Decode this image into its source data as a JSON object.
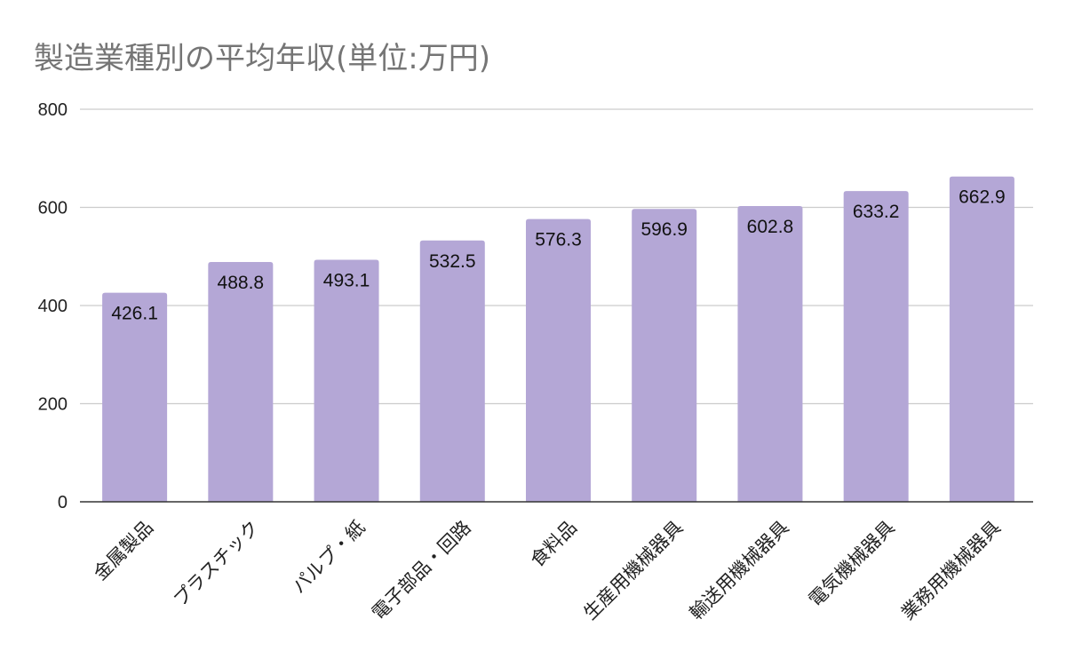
{
  "chart_data": {
    "type": "bar",
    "title": "製造業種別の平均年収(単位:万円)",
    "categories": [
      "金属製品",
      "プラスチック",
      "パルプ・紙",
      "電子部品・回路",
      "食料品",
      "生産用機械器具",
      "輸送用機械器具",
      "電気機械器具",
      "業務用機械器具"
    ],
    "values": [
      426.1,
      488.8,
      493.1,
      532.5,
      576.3,
      596.9,
      602.8,
      633.2,
      662.9
    ],
    "data_labels": [
      "426.1",
      "488.8",
      "493.1",
      "532.5",
      "576.3",
      "596.9",
      "602.8",
      "633.2",
      "662.9"
    ],
    "y_ticks": [
      0,
      200,
      400,
      600,
      800
    ],
    "y_tick_labels": [
      "0",
      "200",
      "400",
      "600",
      "800"
    ],
    "ylim": [
      0,
      800
    ],
    "xlabel": "",
    "ylabel": "",
    "grid": true,
    "legend": "none",
    "colors": {
      "bar": "#b4a7d6",
      "grid": "#cccccc",
      "axis": "#333333",
      "title": "#757575"
    }
  }
}
